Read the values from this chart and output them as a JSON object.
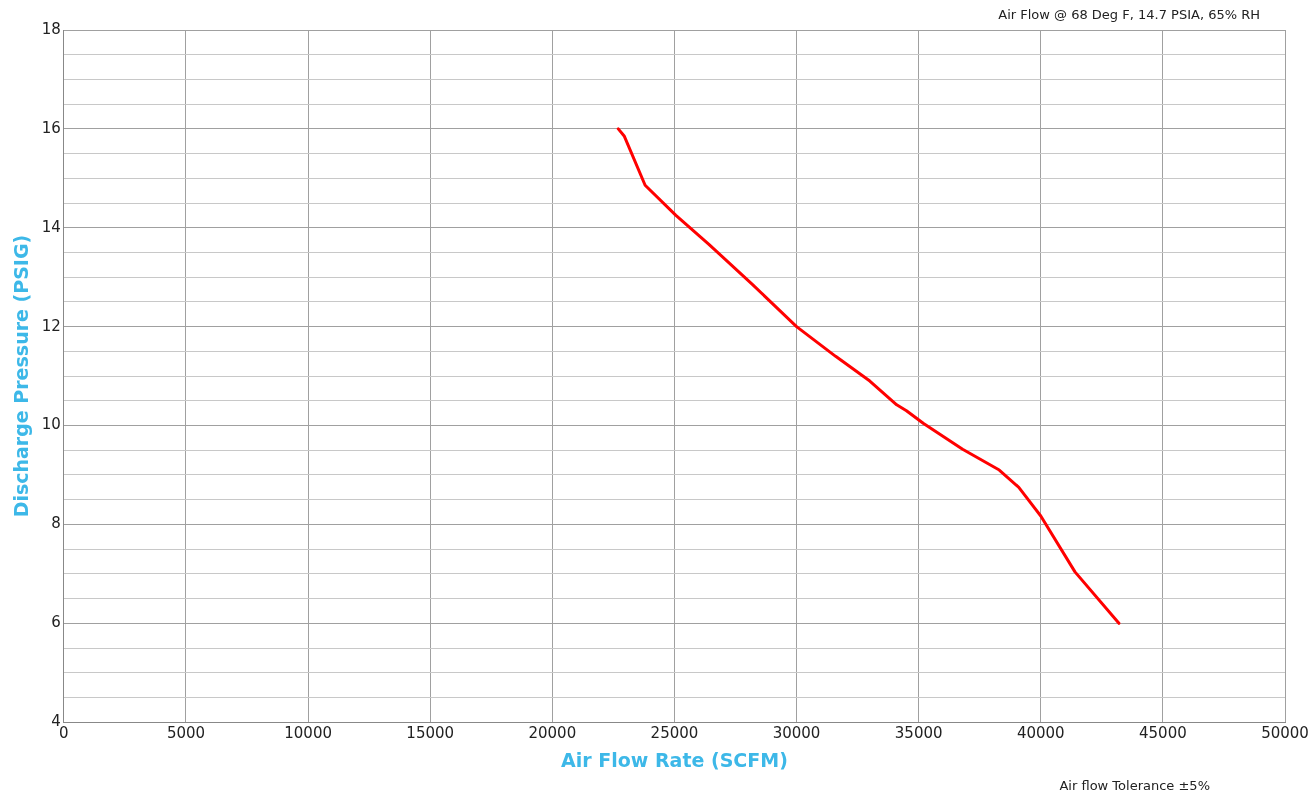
{
  "chart_data": {
    "type": "line",
    "xlabel": "Air Flow Rate (SCFM)",
    "ylabel": "Discharge Pressure (PSIG)",
    "x": [
      22700,
      22950,
      23800,
      25060,
      26400,
      28200,
      30000,
      31600,
      33000,
      34100,
      34500,
      35200,
      36800,
      38300,
      39100,
      40000,
      41400,
      43200
    ],
    "series": [
      {
        "color": "#ff0000",
        "values": [
          16,
          15.85,
          14.86,
          14.25,
          13.67,
          12.85,
          12.0,
          11.4,
          10.9,
          10.42,
          10.3,
          10.04,
          9.52,
          9.1,
          8.75,
          8.17,
          7.04,
          6.0
        ]
      }
    ],
    "xlim": [
      0,
      50000
    ],
    "xticks": [
      0,
      5000,
      10000,
      15000,
      20000,
      25000,
      30000,
      35000,
      40000,
      45000,
      50000
    ],
    "ylim": [
      4,
      18
    ],
    "yticks": [
      4,
      {
        "value": 4.5,
        "label": null
      },
      {
        "value": 5,
        "label": null
      },
      {
        "value": 5.5,
        "label": null
      },
      6,
      {
        "value": 6.5,
        "label": null
      },
      {
        "value": 7,
        "label": null
      },
      {
        "value": 7.5,
        "label": null
      },
      8,
      {
        "value": 8.5,
        "label": null
      },
      {
        "value": 9,
        "label": null
      },
      {
        "value": 9.5,
        "label": null
      },
      10,
      {
        "value": 10.5,
        "label": null
      },
      {
        "value": 11,
        "label": null
      },
      {
        "value": 11.5,
        "label": null
      },
      12,
      {
        "value": 12.5,
        "label": null
      },
      {
        "value": 13,
        "label": null
      },
      {
        "value": 13.5,
        "label": null
      },
      14,
      {
        "value": 14.5,
        "label": null
      },
      {
        "value": 15,
        "label": null
      },
      {
        "value": 15.5,
        "label": null
      },
      16,
      {
        "value": 16.5,
        "label": null
      },
      {
        "value": 17,
        "label": null
      },
      {
        "value": 17.5,
        "label": null
      },
      18
    ],
    "grid": true,
    "legend": false,
    "marker": "none",
    "line_style": "solid",
    "annotations": [
      "Air Flow @ 68 Deg F, 14.7 PSIA, 65% RH",
      "Air flow Tolerance ±5%"
    ]
  }
}
